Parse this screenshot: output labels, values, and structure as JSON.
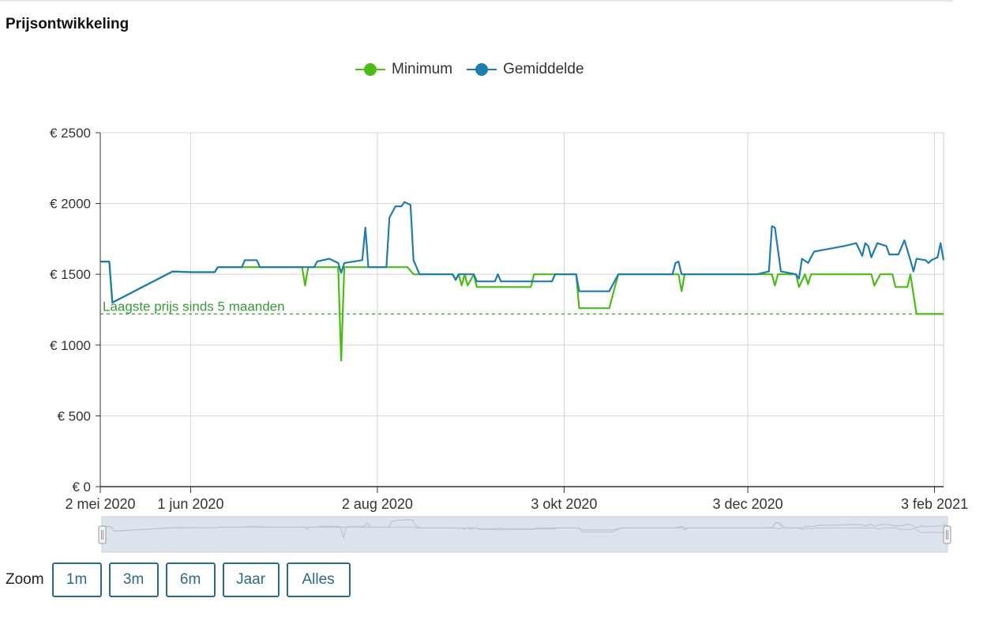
{
  "page": {
    "title": "Prijsontwikkeling"
  },
  "legend": [
    {
      "label": "Minimum",
      "color": "#4cbb17"
    },
    {
      "label": "Gemiddelde",
      "color": "#1f7bb0"
    }
  ],
  "zoom": {
    "label": "Zoom",
    "buttons": [
      "1m",
      "3m",
      "6m",
      "Jaar",
      "Alles"
    ]
  },
  "chart_data": {
    "type": "line",
    "title": "Prijsontwikkeling",
    "x_type": "date",
    "xlim": [
      "2020-05-02",
      "2021-02-06"
    ],
    "ylim": [
      0,
      2500
    ],
    "y_ticks": [
      0,
      500,
      1000,
      1500,
      2000,
      2500
    ],
    "y_tick_labels": [
      "€ 0",
      "€ 500",
      "€ 1000",
      "€ 1500",
      "€ 2000",
      "€ 2500"
    ],
    "x_ticks": [
      "2020-05-02",
      "2020-06-01",
      "2020-08-02",
      "2020-10-03",
      "2020-12-03",
      "2021-02-03"
    ],
    "x_tick_labels": [
      "2 mei 2020",
      "1 jun 2020",
      "2 aug 2020",
      "3 okt 2020",
      "3 dec 2020",
      "3 feb 2021"
    ],
    "grid": true,
    "legend_position": "top-center",
    "series": [
      {
        "name": "Minimum",
        "color": "#4cbb17",
        "points": [
          [
            "2020-05-02",
            1590
          ],
          [
            "2020-05-05",
            1590
          ],
          [
            "2020-05-06",
            1300
          ],
          [
            "2020-05-26",
            1520
          ],
          [
            "2020-06-01",
            1515
          ],
          [
            "2020-06-09",
            1515
          ],
          [
            "2020-06-10",
            1550
          ],
          [
            "2020-07-08",
            1550
          ],
          [
            "2020-07-09",
            1420
          ],
          [
            "2020-07-10",
            1550
          ],
          [
            "2020-07-20",
            1550
          ],
          [
            "2020-07-21",
            890
          ],
          [
            "2020-07-22",
            1550
          ],
          [
            "2020-08-12",
            1550
          ],
          [
            "2020-08-14",
            1500
          ],
          [
            "2020-08-27",
            1500
          ],
          [
            "2020-08-28",
            1460
          ],
          [
            "2020-08-29",
            1500
          ],
          [
            "2020-08-30",
            1420
          ],
          [
            "2020-08-31",
            1500
          ],
          [
            "2020-09-01",
            1420
          ],
          [
            "2020-09-03",
            1500
          ],
          [
            "2020-09-04",
            1410
          ],
          [
            "2020-09-22",
            1410
          ],
          [
            "2020-09-23",
            1500
          ],
          [
            "2020-10-07",
            1500
          ],
          [
            "2020-10-08",
            1260
          ],
          [
            "2020-10-18",
            1260
          ],
          [
            "2020-10-20",
            1420
          ],
          [
            "2020-10-21",
            1500
          ],
          [
            "2020-11-10",
            1500
          ],
          [
            "2020-11-11",
            1380
          ],
          [
            "2020-11-12",
            1500
          ],
          [
            "2020-12-11",
            1500
          ],
          [
            "2020-12-12",
            1420
          ],
          [
            "2020-12-13",
            1500
          ],
          [
            "2020-12-19",
            1500
          ],
          [
            "2020-12-20",
            1410
          ],
          [
            "2020-12-22",
            1500
          ],
          [
            "2020-12-23",
            1430
          ],
          [
            "2020-12-24",
            1500
          ],
          [
            "2021-01-13",
            1500
          ],
          [
            "2021-01-14",
            1420
          ],
          [
            "2021-01-16",
            1500
          ],
          [
            "2021-01-20",
            1500
          ],
          [
            "2021-01-21",
            1410
          ],
          [
            "2021-01-25",
            1410
          ],
          [
            "2021-01-26",
            1500
          ],
          [
            "2021-01-28",
            1220
          ],
          [
            "2021-02-06",
            1220
          ]
        ]
      },
      {
        "name": "Gemiddelde",
        "color": "#1f7bb0",
        "points": [
          [
            "2020-05-02",
            1590
          ],
          [
            "2020-05-05",
            1590
          ],
          [
            "2020-05-06",
            1300
          ],
          [
            "2020-05-26",
            1520
          ],
          [
            "2020-06-01",
            1515
          ],
          [
            "2020-06-09",
            1515
          ],
          [
            "2020-06-10",
            1550
          ],
          [
            "2020-06-18",
            1550
          ],
          [
            "2020-06-19",
            1600
          ],
          [
            "2020-06-23",
            1600
          ],
          [
            "2020-06-24",
            1550
          ],
          [
            "2020-07-12",
            1550
          ],
          [
            "2020-07-13",
            1590
          ],
          [
            "2020-07-17",
            1610
          ],
          [
            "2020-07-20",
            1580
          ],
          [
            "2020-07-21",
            1510
          ],
          [
            "2020-07-22",
            1580
          ],
          [
            "2020-07-28",
            1600
          ],
          [
            "2020-07-29",
            1830
          ],
          [
            "2020-07-30",
            1550
          ],
          [
            "2020-08-05",
            1550
          ],
          [
            "2020-08-06",
            1900
          ],
          [
            "2020-08-08",
            1980
          ],
          [
            "2020-08-10",
            1980
          ],
          [
            "2020-08-11",
            2010
          ],
          [
            "2020-08-13",
            1990
          ],
          [
            "2020-08-14",
            1600
          ],
          [
            "2020-08-16",
            1500
          ],
          [
            "2020-08-27",
            1500
          ],
          [
            "2020-08-28",
            1460
          ],
          [
            "2020-08-29",
            1500
          ],
          [
            "2020-09-03",
            1500
          ],
          [
            "2020-09-04",
            1450
          ],
          [
            "2020-09-10",
            1450
          ],
          [
            "2020-09-11",
            1500
          ],
          [
            "2020-09-12",
            1450
          ],
          [
            "2020-09-29",
            1450
          ],
          [
            "2020-09-30",
            1500
          ],
          [
            "2020-10-07",
            1500
          ],
          [
            "2020-10-08",
            1380
          ],
          [
            "2020-10-18",
            1380
          ],
          [
            "2020-10-20",
            1460
          ],
          [
            "2020-10-21",
            1500
          ],
          [
            "2020-11-08",
            1500
          ],
          [
            "2020-11-09",
            1580
          ],
          [
            "2020-11-10",
            1590
          ],
          [
            "2020-11-11",
            1500
          ],
          [
            "2020-12-06",
            1500
          ],
          [
            "2020-12-10",
            1520
          ],
          [
            "2020-12-11",
            1840
          ],
          [
            "2020-12-12",
            1830
          ],
          [
            "2020-12-14",
            1520
          ],
          [
            "2020-12-19",
            1500
          ],
          [
            "2020-12-20",
            1470
          ],
          [
            "2020-12-21",
            1610
          ],
          [
            "2020-12-23",
            1580
          ],
          [
            "2020-12-25",
            1660
          ],
          [
            "2020-12-30",
            1680
          ],
          [
            "2021-01-04",
            1700
          ],
          [
            "2021-01-08",
            1720
          ],
          [
            "2021-01-10",
            1630
          ],
          [
            "2021-01-11",
            1720
          ],
          [
            "2021-01-12",
            1700
          ],
          [
            "2021-01-13",
            1620
          ],
          [
            "2021-01-15",
            1720
          ],
          [
            "2021-01-18",
            1700
          ],
          [
            "2021-01-19",
            1640
          ],
          [
            "2021-01-22",
            1640
          ],
          [
            "2021-01-24",
            1740
          ],
          [
            "2021-01-26",
            1600
          ],
          [
            "2021-01-27",
            1520
          ],
          [
            "2021-01-28",
            1610
          ],
          [
            "2021-01-31",
            1600
          ],
          [
            "2021-02-01",
            1580
          ],
          [
            "2021-02-02",
            1600
          ],
          [
            "2021-02-04",
            1620
          ],
          [
            "2021-02-05",
            1720
          ],
          [
            "2021-02-06",
            1600
          ]
        ]
      }
    ],
    "annotations": [
      {
        "type": "horizontal-line",
        "y": 1220,
        "label": "Laagste prijs sinds 5 maanden",
        "color": "#3a9a3a",
        "dashed": true
      }
    ],
    "navigator": {
      "present": true
    }
  }
}
